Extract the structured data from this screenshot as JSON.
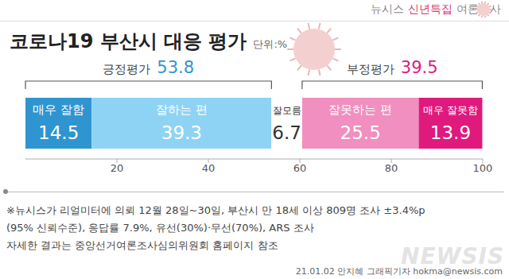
{
  "chart_data": {
    "type": "bar",
    "orientation": "horizontal",
    "stacked": true,
    "data_labels": true,
    "grid": false,
    "tick_labels": "x",
    "title": "코로나19 부산시 대응 평가",
    "subtitle": "단위:%",
    "categories": [
      null
    ],
    "xlim": [
      0,
      100
    ],
    "xticks": [
      20,
      40,
      60,
      80,
      100
    ],
    "series": [
      {
        "name": "매우 잘함",
        "color": "#2f95d0",
        "values": [
          14.5
        ]
      },
      {
        "name": "잘하는 편",
        "color": "#8fd3f4",
        "values": [
          39.3
        ]
      },
      {
        "name": "잘모름",
        "color": "#ffffff",
        "values": [
          6.7
        ]
      },
      {
        "name": "잘못하는 편",
        "color": "#f08fc0",
        "values": [
          25.5
        ]
      },
      {
        "name": "매우 잘못함",
        "color": "#e0197d",
        "values": [
          13.9
        ]
      }
    ],
    "groups": [
      {
        "label": "긍정평가",
        "value": 53.8,
        "color": "#2f95d0",
        "members": [
          "매우 잘함",
          "잘하는 편"
        ]
      },
      {
        "label": "부정평가",
        "value": 39.5,
        "color": "#e0197d",
        "members": [
          "잘못하는 편",
          "매우 잘못함"
        ]
      }
    ],
    "annotations": {
      "header": [
        "뉴시스",
        "신년특집",
        "여론조사"
      ],
      "notes": [
        "※뉴시스가 리얼미터에 의뢰 12월 28일~30일, 부산시 만 18세 이상 809명 조사 ±3.4%p",
        "(95% 신뢰수준), 응답률 7.9%, 유선(30%)·무선(70%), ARS 조사",
        "자세한 결과는 중앙선거여론조사심의위원회 홈페이지 참조"
      ],
      "credit": "21.01.02 안지혜 그래픽기자 hokma@newsis.com",
      "watermark": "NEWSIS"
    }
  }
}
